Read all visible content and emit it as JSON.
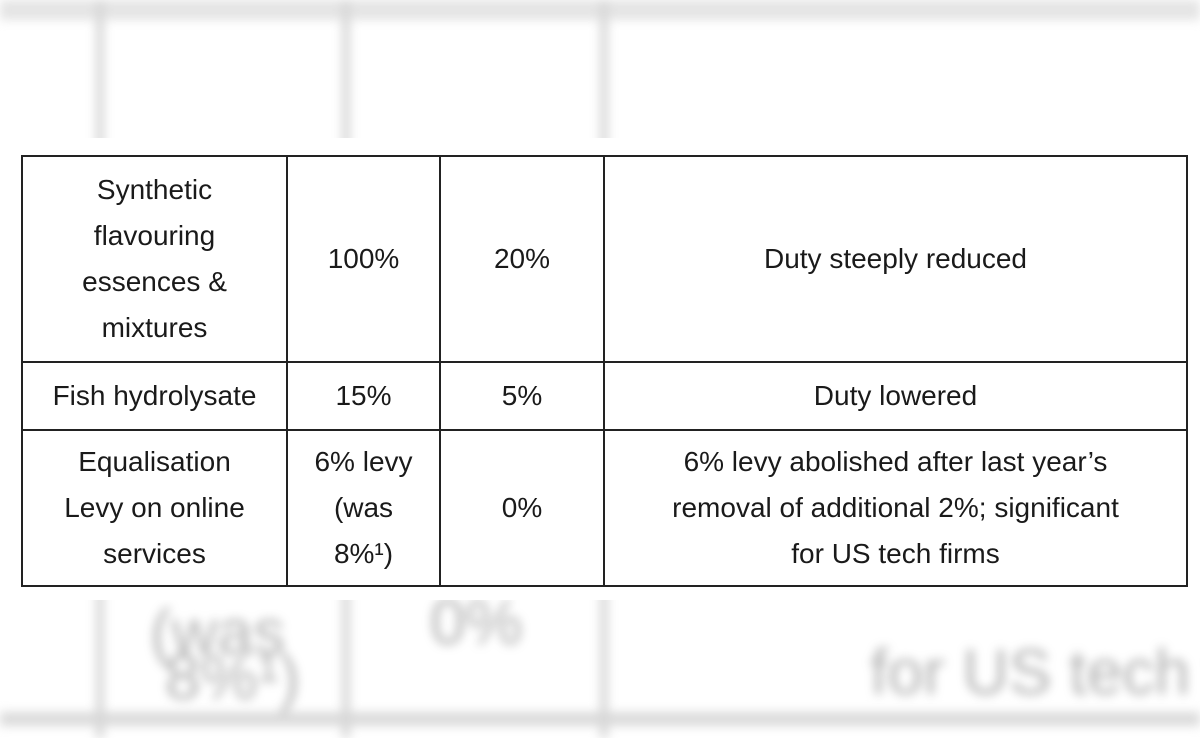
{
  "table": {
    "rows": [
      {
        "item": [
          "Synthetic",
          "flavouring",
          "essences &",
          "mixtures"
        ],
        "old_rate": [
          "100%"
        ],
        "new_rate": [
          "20%"
        ],
        "remark": [
          "Duty steeply reduced"
        ]
      },
      {
        "item": [
          "Fish hydrolysate"
        ],
        "old_rate": [
          "15%"
        ],
        "new_rate": [
          "5%"
        ],
        "remark": [
          "Duty lowered"
        ]
      },
      {
        "item": [
          "Equalisation",
          "Levy on online",
          "services"
        ],
        "old_rate": [
          "6% levy",
          "(was",
          "8%¹)"
        ],
        "new_rate": [
          "0%"
        ],
        "remark": [
          "6% levy abolished after last year’s",
          "removal of additional 2%; significant",
          "for US tech firms"
        ]
      }
    ]
  },
  "background": {
    "blurred_fragments": [
      "(was",
      "8%¹)",
      "0%",
      "for US tech fi"
    ]
  }
}
